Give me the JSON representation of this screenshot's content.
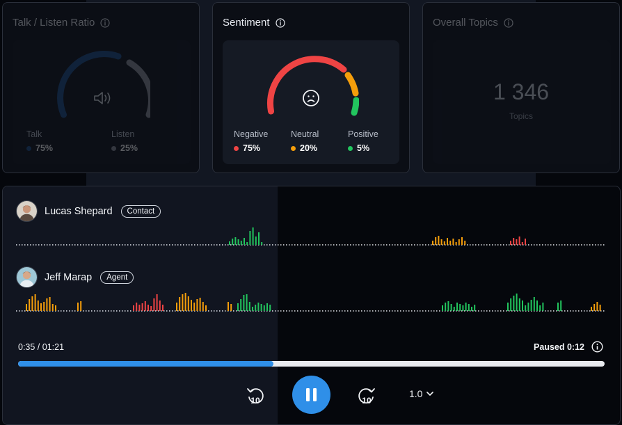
{
  "talk_listen": {
    "title": "Talk / Listen Ratio",
    "talk_label": "Talk",
    "talk_value": "75%",
    "listen_label": "Listen",
    "listen_value": "25%",
    "colors": {
      "talk": "#1d4e89",
      "listen": "#7a7f88"
    }
  },
  "sentiment": {
    "title": "Sentiment",
    "negative_label": "Negative",
    "negative_value": "75%",
    "neutral_label": "Neutral",
    "neutral_value": "20%",
    "positive_label": "Positive",
    "positive_value": "5%",
    "colors": {
      "negative": "#ef4444",
      "neutral": "#f59e0b",
      "positive": "#22c55e"
    },
    "face_icon": "sad-face-icon"
  },
  "topics": {
    "title": "Overall Topics",
    "count": "1 346",
    "label": "Topics"
  },
  "player": {
    "speakers": [
      {
        "name": "Lucas Shepard",
        "role": "Contact"
      },
      {
        "name": "Jeff Marap",
        "role": "Agent"
      }
    ],
    "current_time": "0:35 / 01:21",
    "paused_text": "Paused 0:12",
    "progress": 0.435,
    "speed": "1.0",
    "rewind_label": "10",
    "forward_label": "10",
    "accent": "#2f8fe8"
  }
}
